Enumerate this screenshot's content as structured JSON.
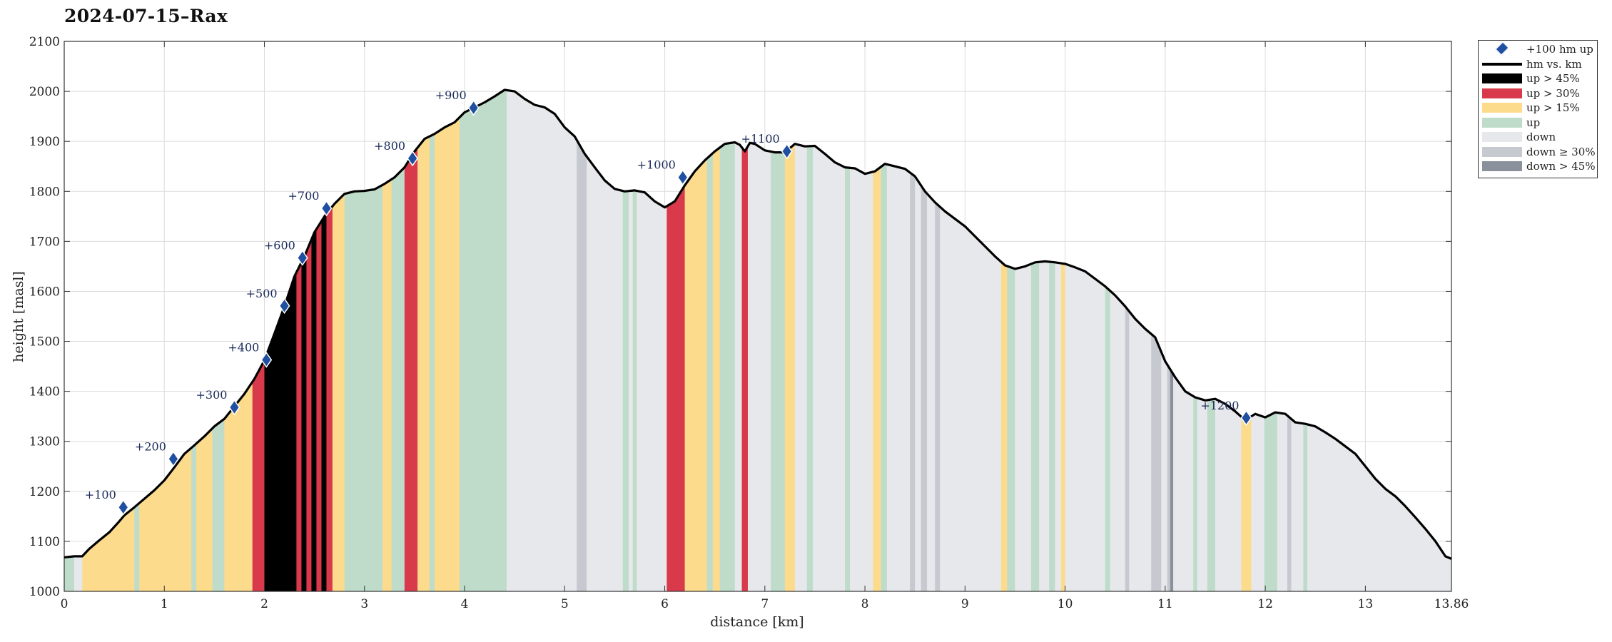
{
  "chart_data": {
    "type": "area",
    "title": "2024-07-15–Rax",
    "xlabel": "distance [km]",
    "ylabel": "height [masl]",
    "xlim": [
      0,
      13.86
    ],
    "ylim": [
      1000,
      2100
    ],
    "x_ticks": [
      0,
      1,
      2,
      3,
      4,
      5,
      6,
      7,
      8,
      9,
      10,
      11,
      12,
      13,
      13.86
    ],
    "x_tick_labels": [
      "0",
      "1",
      "2",
      "3",
      "4",
      "5",
      "6",
      "7",
      "8",
      "9",
      "10",
      "11",
      "12",
      "13",
      "13.86"
    ],
    "y_ticks": [
      1000,
      1100,
      1200,
      1300,
      1400,
      1500,
      1600,
      1700,
      1800,
      1900,
      2000,
      2100
    ],
    "y_tick_labels": [
      "1000",
      "1100",
      "1200",
      "1300",
      "1400",
      "1500",
      "1600",
      "1700",
      "1800",
      "1900",
      "2000",
      "2100"
    ],
    "grid": true,
    "legend_position": "outside-top-right",
    "colors": {
      "up_45": "#000000",
      "up_30": "#d93a4b",
      "up_15": "#fcdb8d",
      "up": "#bfdccb",
      "down": "#e7e8ec",
      "down_30": "#c6c9d0",
      "down_45": "#8a909c",
      "marker": "#1f4fa0",
      "line": "#000000"
    },
    "legend": [
      {
        "key": "marker",
        "label": "+100 hm up"
      },
      {
        "key": "line",
        "label": "hm vs. km"
      },
      {
        "key": "up_45",
        "label": "up > 45%"
      },
      {
        "key": "up_30",
        "label": "up > 30%"
      },
      {
        "key": "up_15",
        "label": "up > 15%"
      },
      {
        "key": "up",
        "label": "up"
      },
      {
        "key": "down",
        "label": "down"
      },
      {
        "key": "down_30",
        "label": "down ≥ 30%"
      },
      {
        "key": "down_45",
        "label": "down > 45%"
      }
    ],
    "profile": [
      [
        0,
        1068
      ],
      [
        0.1,
        1070
      ],
      [
        0.18,
        1070
      ],
      [
        0.25,
        1085
      ],
      [
        0.35,
        1102
      ],
      [
        0.45,
        1118
      ],
      [
        0.55,
        1140
      ],
      [
        0.6,
        1152
      ],
      [
        0.7,
        1168
      ],
      [
        0.8,
        1185
      ],
      [
        0.9,
        1202
      ],
      [
        1.0,
        1222
      ],
      [
        1.1,
        1248
      ],
      [
        1.2,
        1275
      ],
      [
        1.3,
        1292
      ],
      [
        1.4,
        1310
      ],
      [
        1.5,
        1330
      ],
      [
        1.6,
        1345
      ],
      [
        1.7,
        1370
      ],
      [
        1.8,
        1395
      ],
      [
        1.9,
        1425
      ],
      [
        2.0,
        1462
      ],
      [
        2.1,
        1515
      ],
      [
        2.2,
        1570
      ],
      [
        2.3,
        1630
      ],
      [
        2.4,
        1670
      ],
      [
        2.5,
        1718
      ],
      [
        2.6,
        1750
      ],
      [
        2.7,
        1775
      ],
      [
        2.8,
        1795
      ],
      [
        2.9,
        1800
      ],
      [
        3.0,
        1801
      ],
      [
        3.1,
        1804
      ],
      [
        3.2,
        1815
      ],
      [
        3.3,
        1828
      ],
      [
        3.4,
        1848
      ],
      [
        3.5,
        1880
      ],
      [
        3.6,
        1905
      ],
      [
        3.7,
        1915
      ],
      [
        3.8,
        1928
      ],
      [
        3.9,
        1938
      ],
      [
        4.0,
        1958
      ],
      [
        4.1,
        1968
      ],
      [
        4.2,
        1978
      ],
      [
        4.3,
        1990
      ],
      [
        4.4,
        2003
      ],
      [
        4.5,
        2000
      ],
      [
        4.6,
        1985
      ],
      [
        4.7,
        1973
      ],
      [
        4.8,
        1968
      ],
      [
        4.9,
        1955
      ],
      [
        5.0,
        1928
      ],
      [
        5.1,
        1910
      ],
      [
        5.2,
        1875
      ],
      [
        5.3,
        1848
      ],
      [
        5.4,
        1822
      ],
      [
        5.5,
        1805
      ],
      [
        5.6,
        1800
      ],
      [
        5.7,
        1802
      ],
      [
        5.8,
        1798
      ],
      [
        5.9,
        1780
      ],
      [
        6.0,
        1768
      ],
      [
        6.1,
        1780
      ],
      [
        6.2,
        1812
      ],
      [
        6.3,
        1840
      ],
      [
        6.4,
        1862
      ],
      [
        6.5,
        1880
      ],
      [
        6.6,
        1895
      ],
      [
        6.7,
        1898
      ],
      [
        6.75,
        1893
      ],
      [
        6.8,
        1880
      ],
      [
        6.85,
        1897
      ],
      [
        6.9,
        1895
      ],
      [
        7.0,
        1882
      ],
      [
        7.1,
        1878
      ],
      [
        7.2,
        1878
      ],
      [
        7.3,
        1895
      ],
      [
        7.4,
        1890
      ],
      [
        7.5,
        1891
      ],
      [
        7.6,
        1875
      ],
      [
        7.7,
        1858
      ],
      [
        7.8,
        1848
      ],
      [
        7.9,
        1846
      ],
      [
        8.0,
        1835
      ],
      [
        8.1,
        1840
      ],
      [
        8.2,
        1855
      ],
      [
        8.3,
        1850
      ],
      [
        8.4,
        1845
      ],
      [
        8.5,
        1830
      ],
      [
        8.6,
        1800
      ],
      [
        8.7,
        1778
      ],
      [
        8.8,
        1760
      ],
      [
        8.9,
        1745
      ],
      [
        9.0,
        1730
      ],
      [
        9.1,
        1710
      ],
      [
        9.2,
        1690
      ],
      [
        9.3,
        1670
      ],
      [
        9.4,
        1652
      ],
      [
        9.5,
        1645
      ],
      [
        9.6,
        1650
      ],
      [
        9.7,
        1658
      ],
      [
        9.8,
        1660
      ],
      [
        9.9,
        1658
      ],
      [
        10.0,
        1655
      ],
      [
        10.1,
        1648
      ],
      [
        10.2,
        1640
      ],
      [
        10.3,
        1625
      ],
      [
        10.4,
        1610
      ],
      [
        10.5,
        1592
      ],
      [
        10.6,
        1570
      ],
      [
        10.7,
        1545
      ],
      [
        10.8,
        1525
      ],
      [
        10.9,
        1508
      ],
      [
        11.0,
        1460
      ],
      [
        11.1,
        1428
      ],
      [
        11.2,
        1400
      ],
      [
        11.3,
        1388
      ],
      [
        11.4,
        1382
      ],
      [
        11.5,
        1385
      ],
      [
        11.6,
        1375
      ],
      [
        11.7,
        1360
      ],
      [
        11.8,
        1342
      ],
      [
        11.9,
        1355
      ],
      [
        12.0,
        1348
      ],
      [
        12.1,
        1358
      ],
      [
        12.2,
        1355
      ],
      [
        12.3,
        1338
      ],
      [
        12.4,
        1335
      ],
      [
        12.5,
        1330
      ],
      [
        12.6,
        1318
      ],
      [
        12.7,
        1305
      ],
      [
        12.8,
        1290
      ],
      [
        12.9,
        1275
      ],
      [
        13.0,
        1250
      ],
      [
        13.1,
        1225
      ],
      [
        13.2,
        1205
      ],
      [
        13.3,
        1190
      ],
      [
        13.4,
        1170
      ],
      [
        13.5,
        1148
      ],
      [
        13.6,
        1125
      ],
      [
        13.7,
        1100
      ],
      [
        13.8,
        1070
      ],
      [
        13.86,
        1065
      ]
    ],
    "segments": [
      [
        0.0,
        0.1,
        "up"
      ],
      [
        0.1,
        0.18,
        "down"
      ],
      [
        0.18,
        0.7,
        "up_15"
      ],
      [
        0.7,
        0.75,
        "up"
      ],
      [
        0.75,
        1.27,
        "up_15"
      ],
      [
        1.27,
        1.32,
        "up"
      ],
      [
        1.32,
        1.48,
        "up_15"
      ],
      [
        1.48,
        1.6,
        "up"
      ],
      [
        1.6,
        1.88,
        "up_15"
      ],
      [
        1.88,
        2.0,
        "up_30"
      ],
      [
        2.0,
        2.32,
        "up_45"
      ],
      [
        2.32,
        2.37,
        "up_30"
      ],
      [
        2.37,
        2.42,
        "up_45"
      ],
      [
        2.42,
        2.47,
        "up_30"
      ],
      [
        2.47,
        2.52,
        "up_45"
      ],
      [
        2.52,
        2.57,
        "up_30"
      ],
      [
        2.57,
        2.62,
        "up_45"
      ],
      [
        2.62,
        2.68,
        "up_30"
      ],
      [
        2.68,
        2.8,
        "up_15"
      ],
      [
        2.8,
        3.18,
        "up"
      ],
      [
        3.18,
        3.27,
        "up_15"
      ],
      [
        3.27,
        3.4,
        "up"
      ],
      [
        3.4,
        3.53,
        "up_30"
      ],
      [
        3.53,
        3.65,
        "up_15"
      ],
      [
        3.65,
        3.7,
        "up"
      ],
      [
        3.7,
        3.95,
        "up_15"
      ],
      [
        3.95,
        4.42,
        "up"
      ],
      [
        4.42,
        5.12,
        "down"
      ],
      [
        5.12,
        5.22,
        "down_30"
      ],
      [
        5.22,
        5.58,
        "down"
      ],
      [
        5.58,
        5.64,
        "up"
      ],
      [
        5.64,
        5.68,
        "down"
      ],
      [
        5.68,
        5.72,
        "up"
      ],
      [
        5.72,
        6.02,
        "down"
      ],
      [
        6.02,
        6.2,
        "up_30"
      ],
      [
        6.2,
        6.42,
        "up_15"
      ],
      [
        6.42,
        6.48,
        "up"
      ],
      [
        6.48,
        6.55,
        "up_15"
      ],
      [
        6.55,
        6.7,
        "up"
      ],
      [
        6.7,
        6.77,
        "down"
      ],
      [
        6.77,
        6.83,
        "up_30"
      ],
      [
        6.83,
        7.06,
        "down"
      ],
      [
        7.06,
        7.2,
        "up"
      ],
      [
        7.2,
        7.3,
        "up_15"
      ],
      [
        7.3,
        7.42,
        "down"
      ],
      [
        7.42,
        7.48,
        "up"
      ],
      [
        7.48,
        7.8,
        "down"
      ],
      [
        7.8,
        7.85,
        "up"
      ],
      [
        7.85,
        8.08,
        "down"
      ],
      [
        8.08,
        8.16,
        "up_15"
      ],
      [
        8.16,
        8.22,
        "up"
      ],
      [
        8.22,
        8.45,
        "down"
      ],
      [
        8.45,
        8.5,
        "down_30"
      ],
      [
        8.5,
        8.56,
        "down"
      ],
      [
        8.56,
        8.62,
        "down_30"
      ],
      [
        8.62,
        8.7,
        "down"
      ],
      [
        8.7,
        8.75,
        "down_30"
      ],
      [
        8.75,
        9.36,
        "down"
      ],
      [
        9.36,
        9.42,
        "up_15"
      ],
      [
        9.42,
        9.5,
        "up"
      ],
      [
        9.5,
        9.66,
        "down"
      ],
      [
        9.66,
        9.74,
        "up"
      ],
      [
        9.74,
        9.84,
        "down"
      ],
      [
        9.84,
        9.9,
        "up"
      ],
      [
        9.9,
        9.96,
        "down"
      ],
      [
        9.96,
        10.0,
        "up_15"
      ],
      [
        10.0,
        10.4,
        "down"
      ],
      [
        10.4,
        10.45,
        "up"
      ],
      [
        10.45,
        10.6,
        "down"
      ],
      [
        10.6,
        10.64,
        "down_30"
      ],
      [
        10.64,
        10.86,
        "down"
      ],
      [
        10.86,
        10.96,
        "down_30"
      ],
      [
        10.96,
        11.02,
        "down"
      ],
      [
        11.02,
        11.05,
        "down_30"
      ],
      [
        11.05,
        11.08,
        "down_45"
      ],
      [
        11.08,
        11.28,
        "down"
      ],
      [
        11.28,
        11.32,
        "up"
      ],
      [
        11.32,
        11.42,
        "down"
      ],
      [
        11.42,
        11.5,
        "up"
      ],
      [
        11.5,
        11.76,
        "down"
      ],
      [
        11.76,
        11.86,
        "up_15"
      ],
      [
        11.86,
        11.99,
        "down"
      ],
      [
        11.99,
        12.12,
        "up"
      ],
      [
        12.12,
        12.22,
        "down"
      ],
      [
        12.22,
        12.26,
        "down_30"
      ],
      [
        12.26,
        12.38,
        "down"
      ],
      [
        12.38,
        12.42,
        "up"
      ],
      [
        12.42,
        13.86,
        "down"
      ]
    ],
    "markers": [
      {
        "x": 0.59,
        "y": 1168,
        "label": "+100"
      },
      {
        "x": 1.09,
        "y": 1265,
        "label": "+200"
      },
      {
        "x": 1.7,
        "y": 1368,
        "label": "+300"
      },
      {
        "x": 2.02,
        "y": 1463,
        "label": "+400"
      },
      {
        "x": 2.2,
        "y": 1571,
        "label": "+500"
      },
      {
        "x": 2.38,
        "y": 1667,
        "label": "+600"
      },
      {
        "x": 2.62,
        "y": 1766,
        "label": "+700"
      },
      {
        "x": 3.48,
        "y": 1866,
        "label": "+800"
      },
      {
        "x": 4.09,
        "y": 1967,
        "label": "+900"
      },
      {
        "x": 6.18,
        "y": 1828,
        "label": "+1000"
      },
      {
        "x": 7.22,
        "y": 1880,
        "label": "+1100"
      },
      {
        "x": 11.81,
        "y": 1347,
        "label": "+1200"
      }
    ]
  }
}
